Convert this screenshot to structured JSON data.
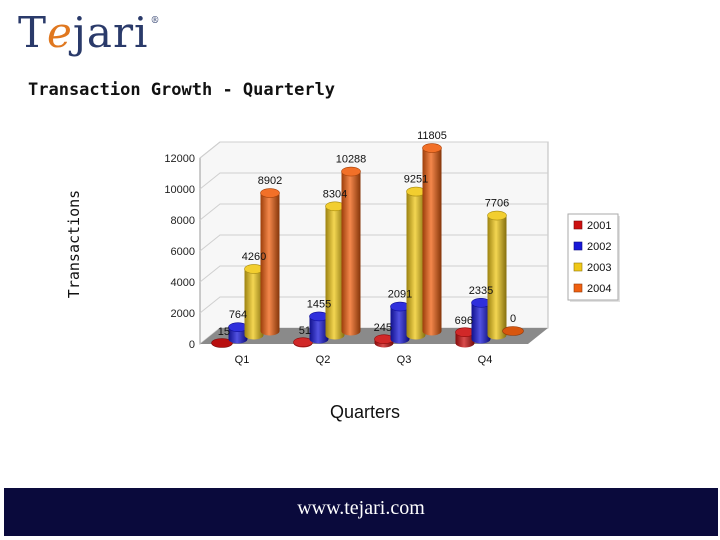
{
  "brand": {
    "logo_text_1": "T",
    "logo_text_e": "e",
    "logo_text_2": "jari",
    "registered": "®"
  },
  "footer": {
    "url": "www.tejari.com"
  },
  "colors": {
    "2001": "#cc1010",
    "2002": "#1818d8",
    "2003": "#f0c818",
    "2004": "#f06010",
    "footer_bg": "#0a0a3c"
  },
  "chart_data": {
    "type": "bar",
    "title": "Transaction Growth - Quarterly",
    "xlabel": "Quarters",
    "ylabel": "Transactions",
    "categories": [
      "Q1",
      "Q2",
      "Q3",
      "Q4"
    ],
    "series": [
      {
        "name": "2001",
        "values": [
          15,
          51,
          245,
          696
        ]
      },
      {
        "name": "2002",
        "values": [
          764,
          1455,
          2091,
          2335
        ]
      },
      {
        "name": "2003",
        "values": [
          4260,
          8304,
          9251,
          7706
        ]
      },
      {
        "name": "2004",
        "values": [
          8902,
          10288,
          11805,
          0
        ]
      }
    ],
    "ylim": [
      0,
      12000
    ],
    "yticks": [
      0,
      2000,
      4000,
      6000,
      8000,
      10000,
      12000
    ],
    "grid": true,
    "legend": "right",
    "style": "3d-cylinder"
  }
}
